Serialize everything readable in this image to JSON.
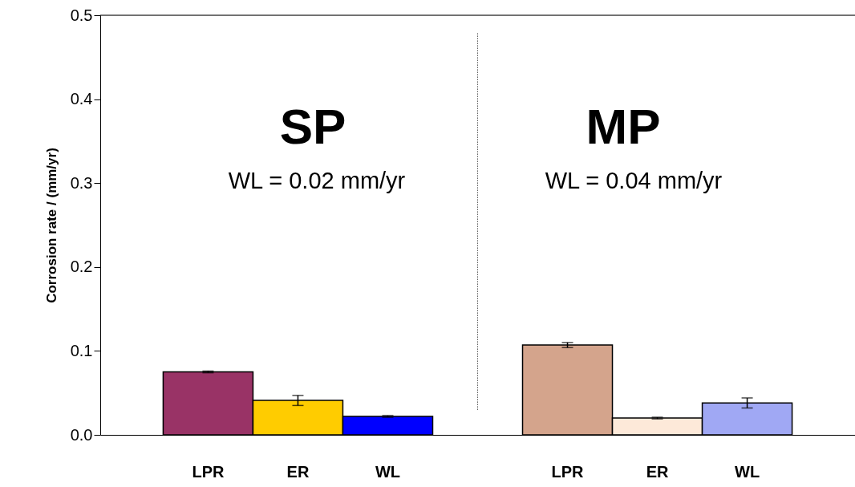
{
  "chart_data": {
    "type": "bar",
    "ylabel": "Corrosion rate / (mm/yr)",
    "categories": [
      "LPR",
      "ER",
      "WL",
      null,
      "LPR",
      "ER",
      "WL"
    ],
    "values": [
      0.075,
      0.041,
      0.022,
      null,
      0.107,
      0.02,
      0.038
    ],
    "errors": [
      0.001,
      0.006,
      0.001,
      null,
      0.003,
      0.001,
      0.006
    ],
    "colors": [
      "#993366",
      "#ffcc00",
      "#0000ff",
      "#ffffff",
      "#d4a48c",
      "#fde9d9",
      "#a0a8f4"
    ],
    "ylim": [
      0,
      0.5
    ],
    "yticks": [
      {
        "value": 0,
        "label": "0.0"
      },
      0.1,
      0.2,
      0.3,
      0.4,
      0.5
    ],
    "ref_lines": [
      {
        "axis": "x",
        "value": null,
        "line_style": "dotted",
        "color": "#000000"
      }
    ],
    "annotations": [
      "SP",
      "WL = 0.02 mm/yr",
      "MP",
      "WL = 0.04 mm/yr"
    ]
  }
}
